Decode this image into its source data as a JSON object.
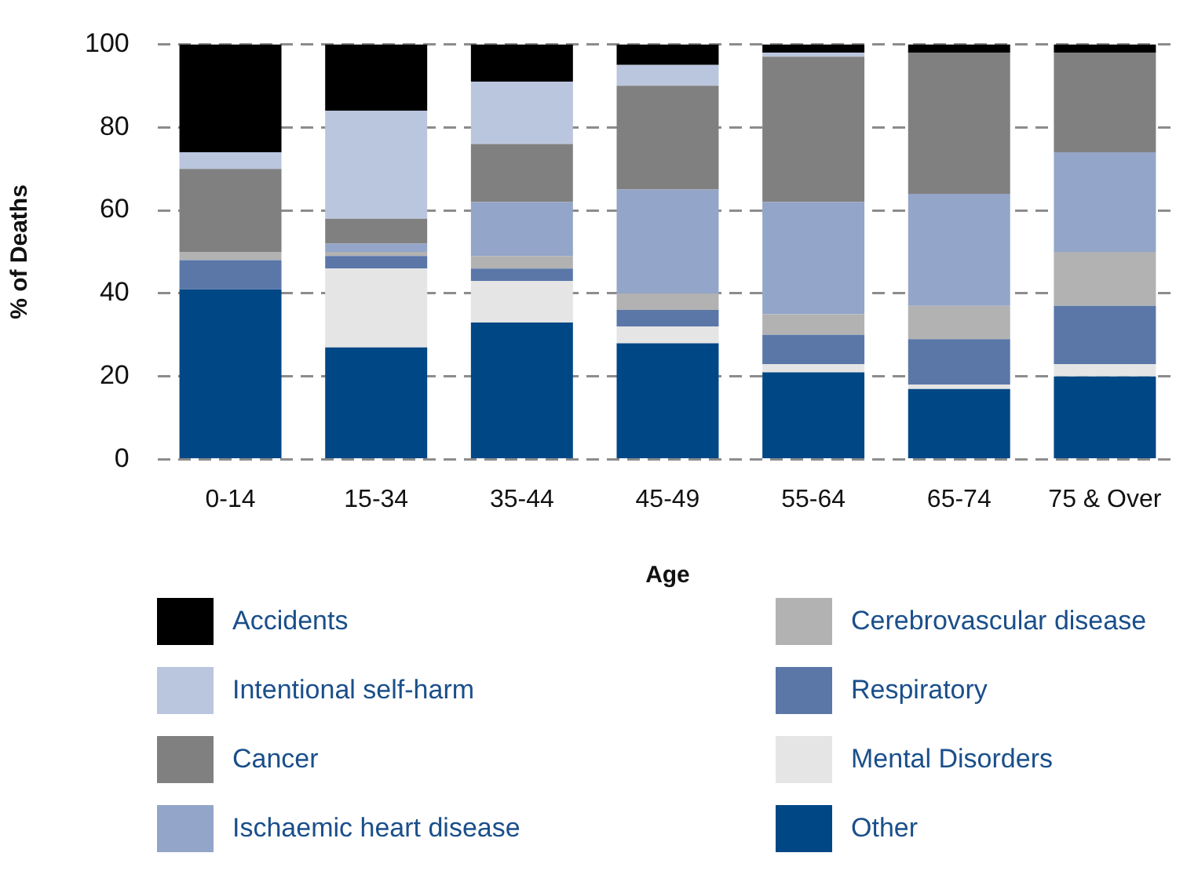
{
  "chart_data": {
    "type": "bar",
    "stacked": true,
    "xlabel": "Age",
    "ylabel": "% of Deaths",
    "categories": [
      "0-14",
      "15-34",
      "35-44",
      "45-49",
      "55-64",
      "65-74",
      "75 & Over"
    ],
    "series": [
      {
        "name": "Other",
        "color": "#004785",
        "values": [
          41,
          27,
          33,
          28,
          21,
          17,
          20
        ]
      },
      {
        "name": "Mental Disorders",
        "color": "#e5e5e5",
        "values": [
          0,
          19,
          10,
          4,
          2,
          1,
          3
        ]
      },
      {
        "name": "Respiratory",
        "color": "#5a77a8",
        "values": [
          7,
          3,
          3,
          4,
          7,
          11,
          14
        ]
      },
      {
        "name": "Cerebrovascular disease",
        "color": "#b2b2b2",
        "values": [
          2,
          1,
          3,
          4,
          5,
          8,
          13
        ]
      },
      {
        "name": "Ischaemic heart disease",
        "color": "#93a5c8",
        "values": [
          0,
          2,
          13,
          25,
          27,
          27,
          24
        ]
      },
      {
        "name": "Cancer",
        "color": "#808080",
        "values": [
          20,
          6,
          14,
          25,
          35,
          34,
          24
        ]
      },
      {
        "name": "Intentional self-harm",
        "color": "#bac5de",
        "values": [
          4,
          26,
          15,
          5,
          1,
          0,
          0
        ]
      },
      {
        "name": "Accidents",
        "color": "#000000",
        "values": [
          26,
          16,
          9,
          5,
          2,
          2,
          2
        ]
      }
    ],
    "ylim": [
      0,
      100
    ],
    "yticks": [
      0,
      20,
      40,
      60,
      80,
      100
    ],
    "grid": "y",
    "legend": "bottom"
  }
}
